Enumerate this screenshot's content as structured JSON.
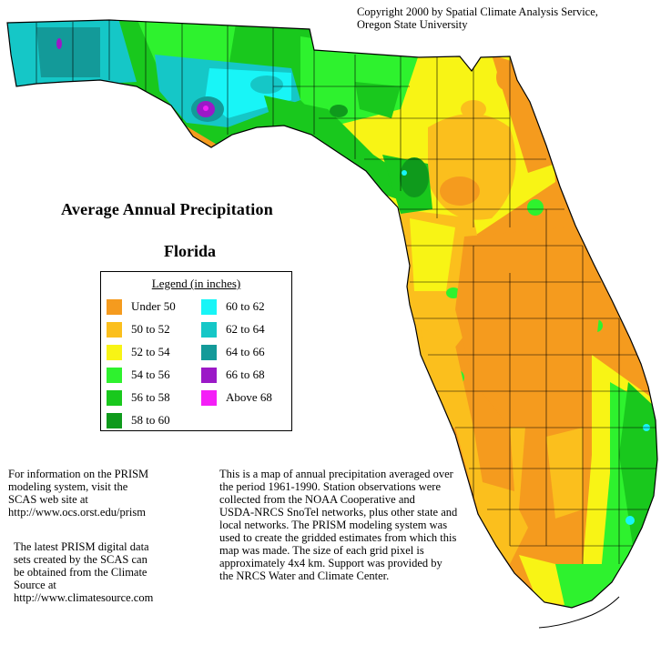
{
  "copyright": {
    "line1": "Copyright 2000 by Spatial Climate Analysis Service,",
    "line2": "Oregon State University"
  },
  "title": "Average Annual Precipitation",
  "state": "Florida",
  "legend": {
    "title": "Legend (in inches)",
    "items": [
      {
        "label": "Under 50",
        "color": "#f59b1e"
      },
      {
        "label": "50 to 52",
        "color": "#fbbf1d"
      },
      {
        "label": "52 to 54",
        "color": "#f8f415"
      },
      {
        "label": "54 to 56",
        "color": "#2ef22e"
      },
      {
        "label": "56 to 58",
        "color": "#19c81d"
      },
      {
        "label": "58 to 60",
        "color": "#0f9a1c"
      },
      {
        "label": "60 to 62",
        "color": "#18f5f7"
      },
      {
        "label": "62 to 64",
        "color": "#15c7c7"
      },
      {
        "label": "64 to 66",
        "color": "#139a99"
      },
      {
        "label": "66 to 68",
        "color": "#9b19c7"
      },
      {
        "label": "Above 68",
        "color": "#f41ff7"
      }
    ]
  },
  "info_prism": {
    "line1": "For information on the PRISM",
    "line2": "modeling system, visit the",
    "line3": "SCAS web site at",
    "line4": " http://www.ocs.orst.edu/prism"
  },
  "info_digital": {
    "line1": "The latest PRISM digital data",
    "line2": "sets created by the SCAS can",
    "line3": "be obtained from the Climate",
    "line4": "Source at",
    "line5": "http://www.climatesource.com"
  },
  "description": {
    "line1": "This is a map of annual precipitation averaged over",
    "line2": "the period 1961-1990. Station observations were",
    "line3": "collected from the NOAA Cooperative and",
    "line4": "USDA-NRCS SnoTel networks, plus other state and",
    "line5": "local networks.  The PRISM modeling system was",
    "line6": "used to create the gridded estimates from which this",
    "line7": "map was made.  The size of each grid pixel is",
    "line8": "approximately 4x4 km.  Support was provided by",
    "line9": "the NRCS Water and Climate Center."
  }
}
